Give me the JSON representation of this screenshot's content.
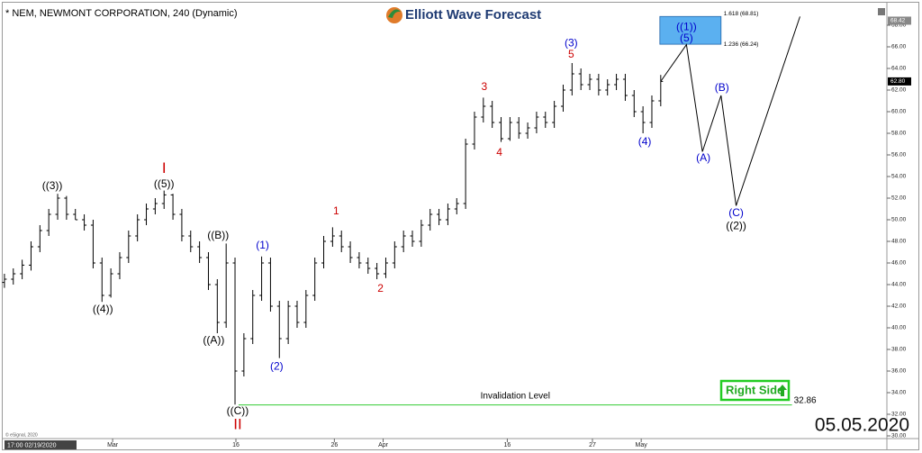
{
  "chart_data": {
    "type": "ohlc",
    "title": "* NEM, NEWMONT CORPORATION, 240 (Dynamic)",
    "logo": "Elliott Wave Forecast",
    "date_stamp": "05.05.2020",
    "footer_time": "17:00 02/19/2020",
    "copyright": "© eSignal, 2020",
    "badge": "Right Side",
    "color": "#000000",
    "xlim": [
      0,
      100
    ],
    "ylim": [
      30,
      68
    ],
    "yticks": [
      {
        "value": 30,
        "label": "30.00"
      },
      {
        "value": 32,
        "label": "32.00"
      },
      {
        "value": 34,
        "label": "34.00"
      },
      {
        "value": 36,
        "label": "36.00"
      },
      {
        "value": 38,
        "label": "38.00"
      },
      {
        "value": 40,
        "label": "40.00"
      },
      {
        "value": 42,
        "label": "42.00"
      },
      {
        "value": 44,
        "label": "44.00"
      },
      {
        "value": 46,
        "label": "46.00"
      },
      {
        "value": 48,
        "label": "48.00"
      },
      {
        "value": 50,
        "label": "50.00"
      },
      {
        "value": 52,
        "label": "52.00"
      },
      {
        "value": 54,
        "label": "54.00"
      },
      {
        "value": 56,
        "label": "56.00"
      },
      {
        "value": 58,
        "label": "58.00"
      },
      {
        "value": 60,
        "label": "60.00"
      },
      {
        "value": 62,
        "label": "62.00"
      },
      {
        "value": 64,
        "label": "64.00"
      },
      {
        "value": 66,
        "label": "66.00"
      },
      {
        "value": 68,
        "label": "68.00"
      }
    ],
    "xticks": [
      {
        "value": 12.7,
        "label": "Mar"
      },
      {
        "value": 26.6,
        "label": "16"
      },
      {
        "value": 37.7,
        "label": "26"
      },
      {
        "value": 43.2,
        "label": "Apr"
      },
      {
        "value": 57.2,
        "label": "16"
      },
      {
        "value": 66.8,
        "label": "27"
      },
      {
        "value": 72.3,
        "label": "May"
      }
    ],
    "x": [
      0.5,
      1.5,
      2.5,
      3.5,
      4.5,
      5.5,
      6.5,
      7.5,
      8.5,
      9.5,
      10.5,
      11.5,
      12.5,
      13.5,
      14.5,
      15.5,
      16.5,
      17.5,
      18.5,
      19.5,
      20.5,
      21.5,
      22.5,
      23.5,
      24.5,
      25.5,
      26.5,
      27.5,
      28.5,
      29.5,
      30.5,
      31.5,
      32.5,
      33.5,
      34.5,
      35.5,
      36.5,
      37.5,
      38.5,
      39.5,
      40.5,
      41.5,
      42.5,
      43.5,
      44.5,
      45.5,
      46.5,
      47.5,
      48.5,
      49.5,
      50.5,
      51.5,
      52.5,
      53.5,
      54.5,
      55.5,
      56.5,
      57.5,
      58.5,
      59.5,
      60.5,
      61.5,
      62.5,
      63.5,
      64.5,
      65.5,
      66.5,
      67.5,
      68.5,
      69.5,
      70.5,
      71.5,
      72.5,
      73.5,
      74.5
    ],
    "open": [
      44.2,
      44.5,
      45,
      45.8,
      47.5,
      49,
      50.5,
      52,
      50.5,
      50,
      49.5,
      46,
      43,
      45,
      46.5,
      48.5,
      50,
      51,
      51.5,
      52.3,
      50.5,
      48.5,
      47.5,
      46.5,
      44,
      40.5,
      46,
      36,
      39,
      43,
      46,
      42,
      39,
      42,
      40.5,
      43,
      46,
      48,
      48.5,
      47.5,
      46.5,
      46,
      45.5,
      45,
      46,
      47.5,
      48.5,
      48,
      49.5,
      50.5,
      50,
      51,
      51.5,
      57,
      59.5,
      60.5,
      59,
      57.5,
      59,
      58,
      58.5,
      59.5,
      59,
      60.5,
      62,
      63.5,
      62.5,
      63,
      62,
      62.5,
      63,
      61.5,
      60,
      59,
      61
    ],
    "high": [
      45,
      45.5,
      46.3,
      48,
      49.5,
      51,
      52.4,
      52.2,
      51,
      50.5,
      50,
      46.5,
      45.5,
      47,
      49,
      50.5,
      51.5,
      52,
      52.7,
      52.4,
      51,
      49,
      48,
      47,
      44.5,
      47.8,
      46.5,
      39.5,
      43.5,
      46.6,
      46.5,
      42.5,
      42.5,
      42.5,
      43.5,
      46.5,
      48.5,
      49.3,
      49,
      48,
      47,
      46.5,
      46,
      46.5,
      48,
      49,
      49,
      50,
      51,
      51,
      51.5,
      52,
      57.5,
      60,
      61.3,
      61,
      59.5,
      59.5,
      59.5,
      59,
      60,
      60,
      61,
      62.5,
      64.5,
      64,
      63.5,
      63.5,
      63,
      63.5,
      63.5,
      62,
      60.5,
      61.5,
      63.4
    ],
    "low": [
      43.7,
      44,
      44.5,
      45.3,
      47,
      48.5,
      50,
      50,
      50,
      49,
      45.5,
      42.4,
      42.8,
      44.5,
      46,
      48,
      49.5,
      50.5,
      51,
      50,
      48,
      47,
      46,
      43.5,
      39.5,
      40,
      32.9,
      35.5,
      38.5,
      42.5,
      41.5,
      37.2,
      38.5,
      40,
      40,
      42.5,
      45.5,
      47.5,
      47,
      46,
      45.5,
      45,
      44.5,
      44.6,
      45.5,
      47,
      47.5,
      47.5,
      49,
      49.5,
      49.5,
      50.5,
      51,
      56.5,
      59,
      58.5,
      57.2,
      57.3,
      57.5,
      57.5,
      58,
      58.5,
      58.5,
      60,
      61.5,
      62,
      62,
      61.5,
      61.5,
      62,
      61,
      59.5,
      58,
      58.5,
      60.5
    ],
    "close": [
      44.5,
      45,
      45.8,
      47.5,
      49,
      50.5,
      52,
      50.5,
      50,
      49.5,
      46,
      43,
      45,
      46.5,
      48.5,
      50,
      51,
      51.5,
      52.3,
      50.5,
      48.5,
      47.5,
      46.5,
      44,
      40.5,
      46,
      36,
      39,
      43,
      46,
      42,
      39,
      42,
      40.5,
      43,
      46,
      48,
      48.5,
      47.5,
      46.5,
      46,
      45.5,
      45,
      46,
      47.5,
      48.5,
      48,
      49.5,
      50.5,
      50,
      51,
      51.5,
      57,
      59.5,
      60.5,
      59,
      57.5,
      59,
      58,
      58.5,
      59.5,
      59,
      60.5,
      62,
      63.5,
      62.5,
      63,
      62,
      62.5,
      63,
      61.5,
      60,
      59,
      61,
      62.8
    ],
    "last_price": {
      "value": 62.8,
      "label": "62.80"
    },
    "marker_price": {
      "value": 68.42,
      "label": "68.42"
    },
    "projection": {
      "color": "#000000",
      "x": [
        74.5,
        77.4,
        79.2,
        81.3,
        83.0,
        90.2
      ],
      "y": [
        62.8,
        66.2,
        56.3,
        61.5,
        51.3,
        68.8
      ]
    },
    "target_zone": {
      "color": "#5bb0f0",
      "x": [
        74.4,
        81.3
      ],
      "low": 66.24,
      "high": 68.81,
      "low_label": "1.236 (66.24)",
      "high_label": "1.618 (68.81)"
    },
    "invalidation": {
      "color": "#33cc33",
      "value": 32.86,
      "label": "32.86",
      "text": "Invalidation Level",
      "x": [
        26.9,
        89.3
      ]
    },
    "annotations": [
      {
        "text": "((3))",
        "x": 5.9,
        "y": 53.1,
        "color": "#000000"
      },
      {
        "text": "((4))",
        "x": 11.6,
        "y": 41.7,
        "color": "#000000"
      },
      {
        "text": "I",
        "x": 18.5,
        "y": 54.7,
        "color": "#cc0000"
      },
      {
        "text": "((5))",
        "x": 18.5,
        "y": 53.25,
        "color": "#000000"
      },
      {
        "text": "((B))",
        "x": 24.6,
        "y": 48.5,
        "color": "#000000"
      },
      {
        "text": "((A))",
        "x": 24.1,
        "y": 38.8,
        "color": "#000000"
      },
      {
        "text": "((C))",
        "x": 26.8,
        "y": 32.25,
        "color": "#000000"
      },
      {
        "text": "II",
        "x": 26.8,
        "y": 31.0,
        "color": "#cc0000"
      },
      {
        "text": "(1)",
        "x": 29.6,
        "y": 47.6,
        "color": "#0000cc"
      },
      {
        "text": "(2)",
        "x": 31.2,
        "y": 36.4,
        "color": "#0000cc"
      },
      {
        "text": "1",
        "x": 37.9,
        "y": 50.75,
        "color": "#cc0000"
      },
      {
        "text": "2",
        "x": 42.9,
        "y": 43.6,
        "color": "#cc0000"
      },
      {
        "text": "3",
        "x": 54.6,
        "y": 62.25,
        "color": "#cc0000"
      },
      {
        "text": "4",
        "x": 56.3,
        "y": 56.2,
        "color": "#cc0000"
      },
      {
        "text": "(3)",
        "x": 64.4,
        "y": 66.3,
        "color": "#0000cc"
      },
      {
        "text": "5",
        "x": 64.4,
        "y": 65.25,
        "color": "#cc0000"
      },
      {
        "text": "(4)",
        "x": 72.7,
        "y": 57.2,
        "color": "#0000cc"
      },
      {
        "text": "((1))",
        "x": 77.4,
        "y": 67.8,
        "color": "#0000cc"
      },
      {
        "text": "(5)",
        "x": 77.4,
        "y": 66.75,
        "color": "#0000cc"
      },
      {
        "text": "(A)",
        "x": 79.3,
        "y": 55.7,
        "color": "#0000cc"
      },
      {
        "text": "(B)",
        "x": 81.4,
        "y": 62.2,
        "color": "#0000cc"
      },
      {
        "text": "(C)",
        "x": 83.0,
        "y": 50.6,
        "color": "#0000cc"
      },
      {
        "text": "((2))",
        "x": 83.0,
        "y": 49.4,
        "color": "#000000"
      }
    ]
  }
}
